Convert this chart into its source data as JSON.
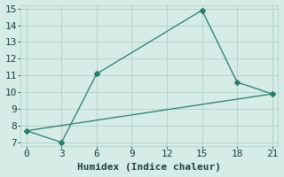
{
  "line1_x": [
    0,
    3,
    6,
    15,
    18,
    21
  ],
  "line1_y": [
    7.7,
    7.0,
    11.1,
    14.9,
    10.6,
    9.9
  ],
  "line2_x": [
    0,
    21
  ],
  "line2_y": [
    7.7,
    9.9
  ],
  "line_color": "#2a7a6a",
  "marker": "D",
  "marker_size": 3,
  "line1_markers": [
    0,
    3,
    6,
    15,
    18,
    21
  ],
  "xlabel": "Humidex (Indice chaleur)",
  "xlim": [
    -0.5,
    21.5
  ],
  "ylim": [
    6.8,
    15.2
  ],
  "xticks": [
    0,
    3,
    6,
    9,
    12,
    15,
    18,
    21
  ],
  "yticks": [
    7,
    8,
    9,
    10,
    11,
    12,
    13,
    14,
    15
  ],
  "bg_color": "#d6ece6",
  "grid_color": "#b2d4cc",
  "font_family": "monospace",
  "xlabel_fontsize": 8,
  "tick_fontsize": 8
}
